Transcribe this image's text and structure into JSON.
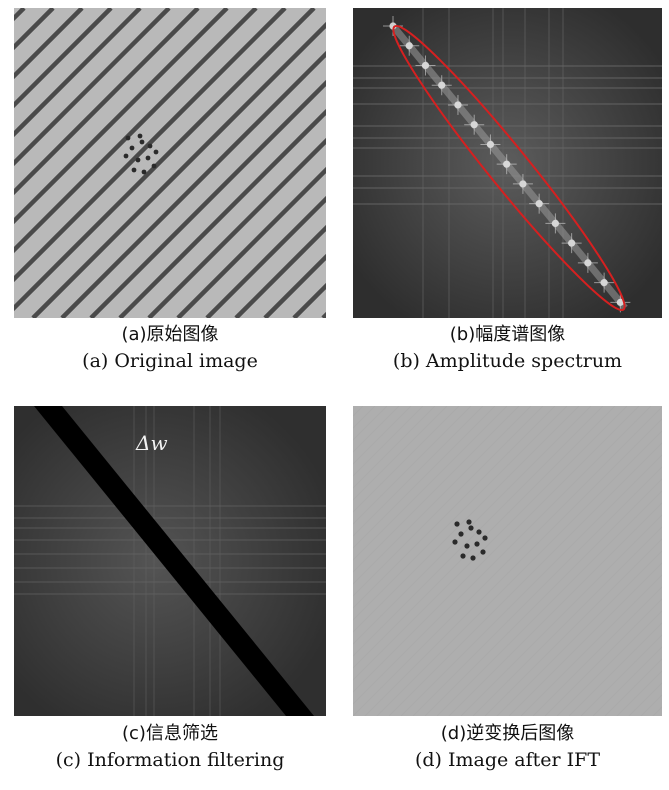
{
  "figure": {
    "panels": [
      {
        "id": "a",
        "caption_zh": "(a)原始图像",
        "caption_en": "(a) Original image"
      },
      {
        "id": "b",
        "caption_zh": "(b)幅度谱图像",
        "caption_en": "(b) Amplitude spectrum"
      },
      {
        "id": "c",
        "caption_zh": "(c)信息筛选",
        "caption_en": "(c) Information filtering",
        "annotation": "Δw"
      },
      {
        "id": "d",
        "caption_zh": "(d)逆变换后图像",
        "caption_en": "(d) Image after IFT"
      }
    ]
  },
  "colors": {
    "stripe_background": "#b9b9b9",
    "stripe_dark": "#4a4a4a",
    "spectrum_background": "#3b3b3b",
    "ellipse_outline": "#d62020",
    "filter_band": "#000000",
    "ift_background": "#aeaeae",
    "dot": "#2a2a2a"
  }
}
